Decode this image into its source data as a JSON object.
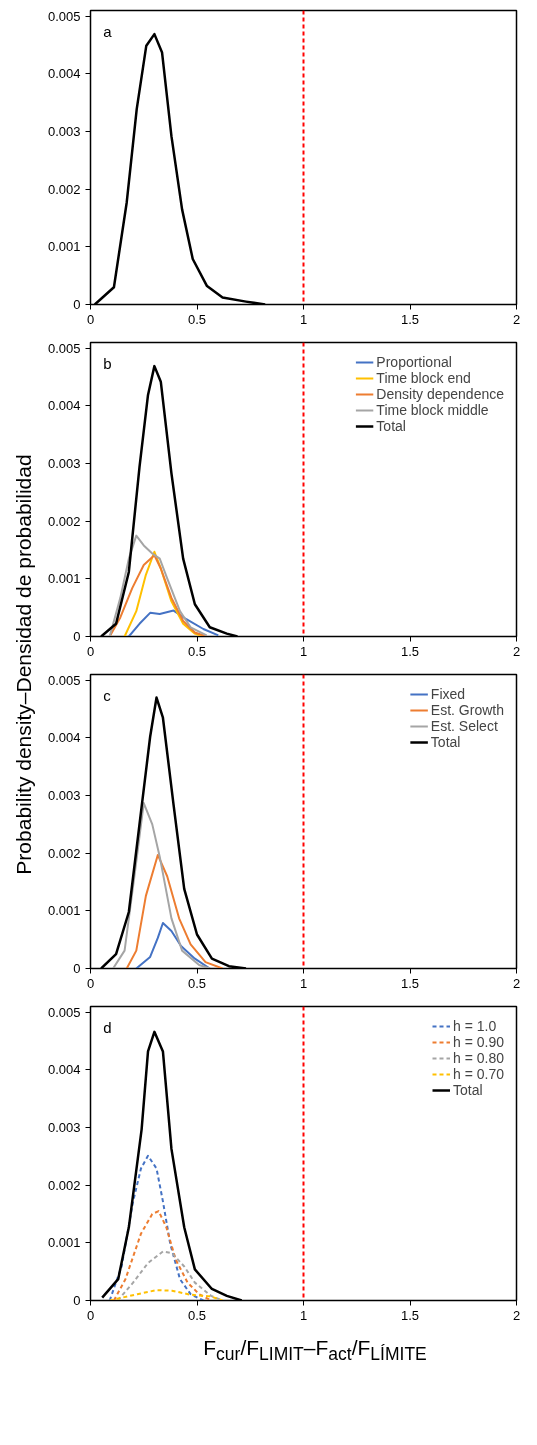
{
  "chart_data": [
    {
      "type": "line",
      "annotations": [
        "a"
      ],
      "xlim": [
        0,
        2
      ],
      "xticks": [
        0,
        0.5,
        1,
        1.5,
        2
      ],
      "ylim": [
        0,
        0.0051
      ],
      "yticks": [
        0,
        0.001,
        0.002,
        0.003,
        0.004,
        0.005
      ],
      "grid": false,
      "legend": false,
      "line_style": "solid",
      "ref_lines": [
        {
          "axis": "x",
          "value": 1,
          "color": "#ff0000",
          "line_style": "dashed"
        }
      ],
      "series": [
        {
          "color": "#000000",
          "x": [
            0.02,
            0.05,
            0.11,
            0.17,
            0.217,
            0.262,
            0.3,
            0.336,
            0.38,
            0.43,
            0.48,
            0.547,
            0.62,
            0.73,
            0.82
          ],
          "values": [
            0,
            0.0001,
            0.0003,
            0.00177,
            0.00339,
            0.00449,
            0.00469,
            0.00437,
            0.00292,
            0.00165,
            0.00079,
            0.00032,
            0.00012,
            5e-05,
            0
          ]
        }
      ]
    },
    {
      "type": "line",
      "annotations": [
        "b"
      ],
      "ylabel": "Probability density–Densidad de probabilidad",
      "xlim": [
        0,
        2
      ],
      "xticks": [
        0,
        0.5,
        1,
        1.5,
        2
      ],
      "ylim": [
        0,
        0.0051
      ],
      "yticks": [
        0,
        0.001,
        0.002,
        0.003,
        0.004,
        0.005
      ],
      "grid": false,
      "legend": "top right",
      "line_style": "solid",
      "ref_lines": [
        {
          "axis": "x",
          "value": 1,
          "color": "#ff0000",
          "line_style": "dashed"
        }
      ],
      "series": [
        {
          "name": "Proportional",
          "color": "#4472c4",
          "x": [
            0.18,
            0.23,
            0.28,
            0.325,
            0.39,
            0.45,
            0.53,
            0.6
          ],
          "values": [
            0,
            0.00022,
            0.00041,
            0.00039,
            0.00045,
            0.0003,
            0.00013,
            2e-05
          ]
        },
        {
          "name": "Time block end",
          "color": "#ffc000",
          "x": [
            0.16,
            0.215,
            0.26,
            0.3,
            0.33,
            0.38,
            0.435,
            0.49,
            0.53
          ],
          "values": [
            0,
            0.00044,
            0.00107,
            0.00147,
            0.00118,
            0.00061,
            0.00022,
            5e-05,
            0
          ]
        },
        {
          "name": "Density dependence",
          "color": "#ed7d31",
          "x": [
            0.09,
            0.14,
            0.196,
            0.25,
            0.3,
            0.33,
            0.38,
            0.435,
            0.49,
            0.545
          ],
          "values": [
            0,
            0.00033,
            0.00084,
            0.00124,
            0.00141,
            0.00118,
            0.00067,
            0.00027,
            7e-05,
            0
          ]
        },
        {
          "name": "Time block middle",
          "color": "#a5a5a5",
          "x": [
            0.09,
            0.14,
            0.18,
            0.215,
            0.25,
            0.29,
            0.325,
            0.36,
            0.42,
            0.47,
            0.545
          ],
          "values": [
            0,
            0.00067,
            0.00135,
            0.00175,
            0.00158,
            0.00144,
            0.00135,
            0.00101,
            0.00044,
            0.00016,
            2e-05
          ]
        },
        {
          "name": "Total",
          "color": "#000000",
          "x": [
            0.05,
            0.12,
            0.18,
            0.23,
            0.27,
            0.3,
            0.33,
            0.38,
            0.435,
            0.49,
            0.56,
            0.64,
            0.69
          ],
          "values": [
            0,
            0.00022,
            0.00112,
            0.00294,
            0.00419,
            0.00469,
            0.00442,
            0.00283,
            0.00135,
            0.00056,
            0.00016,
            5e-05,
            0
          ]
        }
      ]
    },
    {
      "type": "line",
      "annotations": [
        "c"
      ],
      "xlim": [
        0,
        2
      ],
      "xticks": [
        0,
        0.5,
        1,
        1.5,
        2
      ],
      "ylim": [
        0,
        0.0051
      ],
      "yticks": [
        0,
        0.001,
        0.002,
        0.003,
        0.004,
        0.005
      ],
      "grid": false,
      "legend": "top right",
      "line_style": "solid",
      "ref_lines": [
        {
          "axis": "x",
          "value": 1,
          "color": "#ff0000",
          "line_style": "dashed"
        }
      ],
      "series": [
        {
          "name": "Fixed",
          "color": "#4472c4",
          "x": [
            0.215,
            0.28,
            0.316,
            0.34,
            0.38,
            0.425,
            0.49,
            0.56
          ],
          "values": [
            0,
            0.0002,
            0.00053,
            0.00079,
            0.00065,
            0.00039,
            0.00017,
            0
          ]
        },
        {
          "name": "Est. Growth",
          "color": "#ed7d31",
          "x": [
            0.17,
            0.215,
            0.26,
            0.316,
            0.36,
            0.416,
            0.47,
            0.54,
            0.62
          ],
          "values": [
            0,
            0.00031,
            0.00126,
            0.00197,
            0.0016,
            0.00087,
            0.00042,
            0.00011,
            0
          ]
        },
        {
          "name": "Est. Select",
          "color": "#a5a5a5",
          "x": [
            0.106,
            0.16,
            0.21,
            0.25,
            0.29,
            0.325,
            0.38,
            0.43,
            0.51,
            0.56
          ],
          "values": [
            0,
            0.00031,
            0.00171,
            0.00287,
            0.0025,
            0.00194,
            0.00087,
            0.00031,
            6e-05,
            0
          ]
        },
        {
          "name": "Total",
          "color": "#000000",
          "x": [
            0.05,
            0.12,
            0.18,
            0.23,
            0.28,
            0.31,
            0.34,
            0.39,
            0.44,
            0.5,
            0.57,
            0.65,
            0.73
          ],
          "values": [
            0,
            0.00025,
            0.00098,
            0.0025,
            0.00402,
            0.0047,
            0.00435,
            0.00284,
            0.00138,
            0.00059,
            0.00017,
            4e-05,
            0
          ]
        }
      ]
    },
    {
      "type": "line",
      "annotations": [
        "d"
      ],
      "xlabel": "F$_{cur}$/F$_{LIMIT}$–F$_{act}$/F$_{LÍMITE}$",
      "xlim": [
        0,
        2
      ],
      "xticks": [
        0,
        0.5,
        1,
        1.5,
        2
      ],
      "ylim": [
        0,
        0.0051
      ],
      "yticks": [
        0,
        0.001,
        0.002,
        0.003,
        0.004,
        0.005
      ],
      "grid": false,
      "legend": "top right",
      "ref_lines": [
        {
          "axis": "x",
          "value": 1,
          "color": "#ff0000",
          "line_style": "dashed"
        }
      ],
      "series": [
        {
          "name": "h = 1.0",
          "color": "#4472c4",
          "line_style": "dashed",
          "x": [
            0.09,
            0.146,
            0.2,
            0.237,
            0.27,
            0.31,
            0.34,
            0.374,
            0.42,
            0.47,
            0.53
          ],
          "values": [
            0,
            0.00059,
            0.00172,
            0.00229,
            0.00251,
            0.00229,
            0.00172,
            0.00099,
            0.00037,
            0.00011,
            0
          ]
        },
        {
          "name": "h = 0.90",
          "color": "#ed7d31",
          "line_style": "dashed",
          "x": [
            0.11,
            0.164,
            0.237,
            0.29,
            0.32,
            0.356,
            0.4,
            0.456,
            0.51,
            0.566
          ],
          "values": [
            0,
            0.00037,
            0.00116,
            0.0015,
            0.00155,
            0.00127,
            0.00071,
            0.00031,
            0.00011,
            0
          ]
        },
        {
          "name": "h = 0.80",
          "color": "#a5a5a5",
          "line_style": "dashed",
          "x": [
            0.128,
            0.2,
            0.27,
            0.34,
            0.383,
            0.44,
            0.49,
            0.566,
            0.62
          ],
          "values": [
            0,
            0.00031,
            0.00065,
            0.00085,
            0.00082,
            0.00059,
            0.00031,
            8e-05,
            0
          ]
        },
        {
          "name": "h = 0.70",
          "color": "#ffc000",
          "line_style": "dashed",
          "x": [
            0.09,
            0.22,
            0.31,
            0.383,
            0.47,
            0.566,
            0.62
          ],
          "values": [
            0,
            0.00011,
            0.00018,
            0.00017,
            0.0001,
            7e-05,
            0
          ]
        },
        {
          "name": "Total",
          "color": "#000000",
          "line_style": "solid",
          "x": [
            0.055,
            0.13,
            0.18,
            0.24,
            0.27,
            0.3,
            0.34,
            0.38,
            0.44,
            0.49,
            0.57,
            0.64,
            0.71
          ],
          "values": [
            5e-05,
            0.00037,
            0.00127,
            0.00297,
            0.00432,
            0.00466,
            0.00432,
            0.00263,
            0.00127,
            0.00054,
            0.0002,
            8e-05,
            0
          ]
        }
      ]
    }
  ]
}
